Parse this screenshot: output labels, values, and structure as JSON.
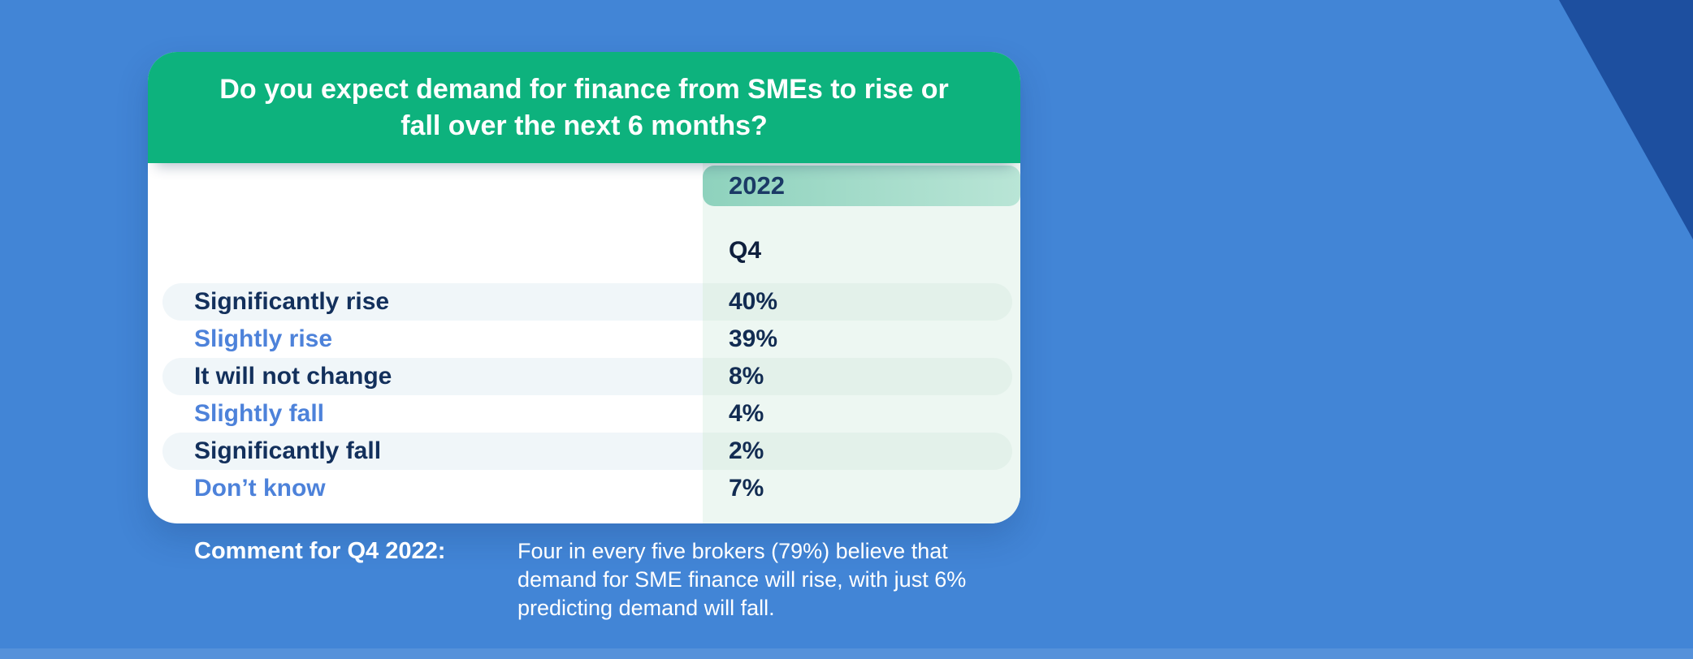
{
  "page": {
    "background_color": "#4285d6",
    "corner_accent_color": "#1d4f9f"
  },
  "card": {
    "header_color": "#0db27d",
    "title_line1": "Do you expect demand for finance from SMEs to rise or",
    "title_line2": "fall over the next 6 months?",
    "year_header": "2022",
    "quarter_header": "Q4",
    "rows": [
      {
        "label": "Significantly rise",
        "value": "40%",
        "style": "dark"
      },
      {
        "label": "Slightly rise",
        "value": "39%",
        "style": "blue"
      },
      {
        "label": "It will not change",
        "value": "8%",
        "style": "dark"
      },
      {
        "label": "Slightly fall",
        "value": "4%",
        "style": "blue"
      },
      {
        "label": "Significantly fall",
        "value": "2%",
        "style": "dark"
      },
      {
        "label": "Don’t know",
        "value": "7%",
        "style": "blue"
      }
    ],
    "text_colors": {
      "dark_label": "#13305c",
      "blue_label": "#4d82da",
      "value": "#122c52"
    }
  },
  "comment": {
    "label": "Comment for Q4 2022:",
    "text": "Four in every five brokers (79%) believe that demand for SME finance will rise, with just 6% predicting demand will fall."
  },
  "chart_data": {
    "type": "table",
    "title": "Do you expect demand for finance from SMEs to rise or fall over the next 6 months?",
    "columns": [
      "2022 Q4"
    ],
    "categories": [
      "Significantly rise",
      "Slightly rise",
      "It will not change",
      "Slightly fall",
      "Significantly fall",
      "Don’t know"
    ],
    "values_percent": [
      40,
      39,
      8,
      4,
      2,
      7
    ],
    "unit": "%",
    "annotation": "Four in every five brokers (79%) believe that demand for SME finance will rise, with just 6% predicting demand will fall."
  }
}
